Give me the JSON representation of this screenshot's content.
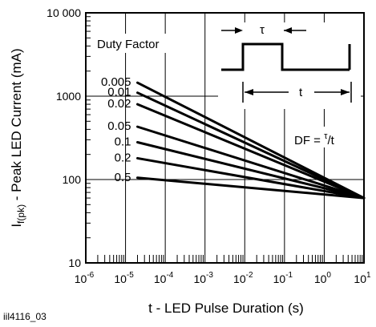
{
  "chart_data": {
    "type": "line",
    "x_scale": "log",
    "y_scale": "log",
    "xlim": [
      1e-06,
      10
    ],
    "ylim": [
      10,
      10000
    ],
    "grid": "major",
    "xlabel": "t - LED Pulse Duration (s)",
    "ylabel_main": "I",
    "ylabel_sub": "f(pk)",
    "ylabel_rest": " - Peak LED Current (mA)",
    "x_ticks": [
      {
        "value": 1e-06,
        "base": "10",
        "exp": "-6"
      },
      {
        "value": 1e-05,
        "base": "10",
        "exp": "-5"
      },
      {
        "value": 0.0001,
        "base": "10",
        "exp": "-4"
      },
      {
        "value": 0.001,
        "base": "10",
        "exp": "-3"
      },
      {
        "value": 0.01,
        "base": "10",
        "exp": "-2"
      },
      {
        "value": 0.1,
        "base": "10",
        "exp": "-1"
      },
      {
        "value": 1,
        "base": "10",
        "exp": "0"
      },
      {
        "value": 10,
        "base": "10",
        "exp": "1"
      }
    ],
    "y_ticks": [
      {
        "value": 10,
        "label": "10"
      },
      {
        "value": 100,
        "label": "100"
      },
      {
        "value": 1000,
        "label": "1000"
      },
      {
        "value": 10000,
        "label": "10 000"
      }
    ],
    "legend_title": "Duty Factor",
    "series": [
      {
        "name": "0.005",
        "x": [
          2e-05,
          10
        ],
        "y": [
          1450,
          60
        ]
      },
      {
        "name": "0.01",
        "x": [
          2e-05,
          10
        ],
        "y": [
          1100,
          60
        ]
      },
      {
        "name": "0.02",
        "x": [
          2e-05,
          10
        ],
        "y": [
          800,
          60
        ]
      },
      {
        "name": "0.05",
        "x": [
          2e-05,
          10
        ],
        "y": [
          430,
          60
        ]
      },
      {
        "name": "0.1",
        "x": [
          2e-05,
          10
        ],
        "y": [
          280,
          60
        ]
      },
      {
        "name": "0.2",
        "x": [
          2e-05,
          10
        ],
        "y": [
          180,
          60
        ]
      },
      {
        "name": "0.5",
        "x": [
          2e-05,
          10
        ],
        "y": [
          105,
          60
        ]
      }
    ],
    "inset": {
      "tau_label": "τ",
      "t_label": "t",
      "formula_main": "DF = ",
      "formula_sup": "τ",
      "formula_rest": "/t"
    }
  },
  "figure_id": "iil4116_03"
}
